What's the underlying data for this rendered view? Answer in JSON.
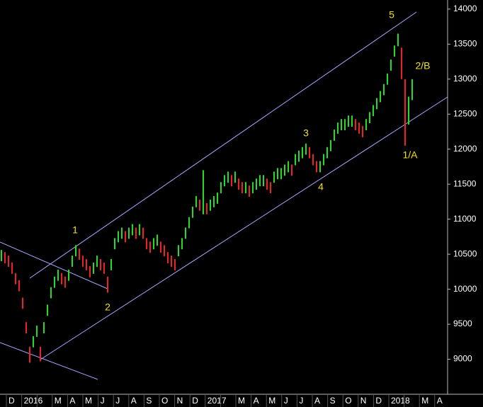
{
  "chart_data": {
    "type": "ohlc",
    "categories": [
      "D",
      "2016",
      null,
      "M",
      "A",
      "M",
      "J",
      "J",
      "A",
      "S",
      "O",
      "N",
      "D",
      "2017",
      null,
      "M",
      "A",
      "M",
      "J",
      "J",
      "A",
      "S",
      "O",
      "N",
      "D",
      "2018",
      null,
      "M",
      "A"
    ],
    "series": [
      {
        "high": [
          10560,
          10530,
          10480,
          10380,
          10230,
          10130,
          9880,
          9530,
          9180,
          9330,
          9480,
          9180,
          9530,
          9780,
          10030,
          10180,
          10280,
          10230,
          10180,
          10280,
          10480,
          10630,
          10580,
          10480,
          10430,
          10330,
          10380,
          10480,
          10430,
          10380,
          10180,
          10430,
          10730,
          10830,
          10880,
          10830,
          10880,
          10930,
          10880,
          10930,
          10880,
          10730,
          10680,
          10730,
          10780,
          10680,
          10630,
          10530,
          10480,
          10430,
          10630,
          10730,
          10880,
          11030,
          11180,
          11330,
          11280,
          11700,
          11230,
          11280,
          11330,
          11380,
          11530,
          11630,
          11680,
          11630,
          11680,
          11580,
          11530,
          11530,
          11480,
          11530,
          11580,
          11630,
          11630,
          11580,
          11530,
          11680,
          11730,
          11730,
          11780,
          11830,
          11780,
          11930,
          11980,
          12030,
          12080,
          12030,
          11930,
          11830,
          11830,
          11930,
          12030,
          12130,
          12280,
          12380,
          12430,
          12430,
          12480,
          12480,
          12430,
          12380,
          12330,
          12430,
          12530,
          12630,
          12730,
          12830,
          12930,
          13080,
          13280,
          13480,
          13650,
          13450,
          13000,
          12750,
          13000
        ],
        "low": [
          10400,
          10370,
          10320,
          10220,
          10070,
          9970,
          9720,
          9370,
          8950,
          9170,
          9320,
          8970,
          9370,
          9620,
          9870,
          10020,
          10120,
          10070,
          10020,
          10120,
          10320,
          10470,
          10420,
          10320,
          10270,
          10170,
          10220,
          10320,
          10270,
          10220,
          9950,
          10270,
          10570,
          10670,
          10720,
          10670,
          10720,
          10770,
          10720,
          10770,
          10720,
          10570,
          10520,
          10570,
          10620,
          10520,
          10470,
          10370,
          10320,
          10270,
          10470,
          10570,
          10720,
          10870,
          11020,
          11170,
          11120,
          11070,
          11070,
          11120,
          11170,
          11220,
          11370,
          11470,
          11520,
          11470,
          11520,
          11420,
          11370,
          11370,
          11320,
          11370,
          11420,
          11470,
          11470,
          11420,
          11370,
          11520,
          11570,
          11570,
          11620,
          11670,
          11620,
          11770,
          11820,
          11870,
          11920,
          11870,
          11770,
          11670,
          11670,
          11770,
          11870,
          11970,
          12120,
          12220,
          12270,
          12270,
          12320,
          12320,
          12270,
          12220,
          12170,
          12270,
          12370,
          12470,
          12570,
          12670,
          12770,
          12920,
          13120,
          13320,
          13470,
          13000,
          12050,
          12350,
          12700
        ]
      }
    ],
    "up_color": "#22dd22",
    "down_color": "#ee2222",
    "ylim": [
      8500,
      14130
    ],
    "yticks": [
      9000,
      9500,
      10000,
      10500,
      11000,
      11500,
      12000,
      12500,
      13000,
      13500,
      14000
    ],
    "annotations": [
      "5",
      "2/B",
      "3",
      "1/A",
      "4",
      "1",
      "2"
    ]
  }
}
